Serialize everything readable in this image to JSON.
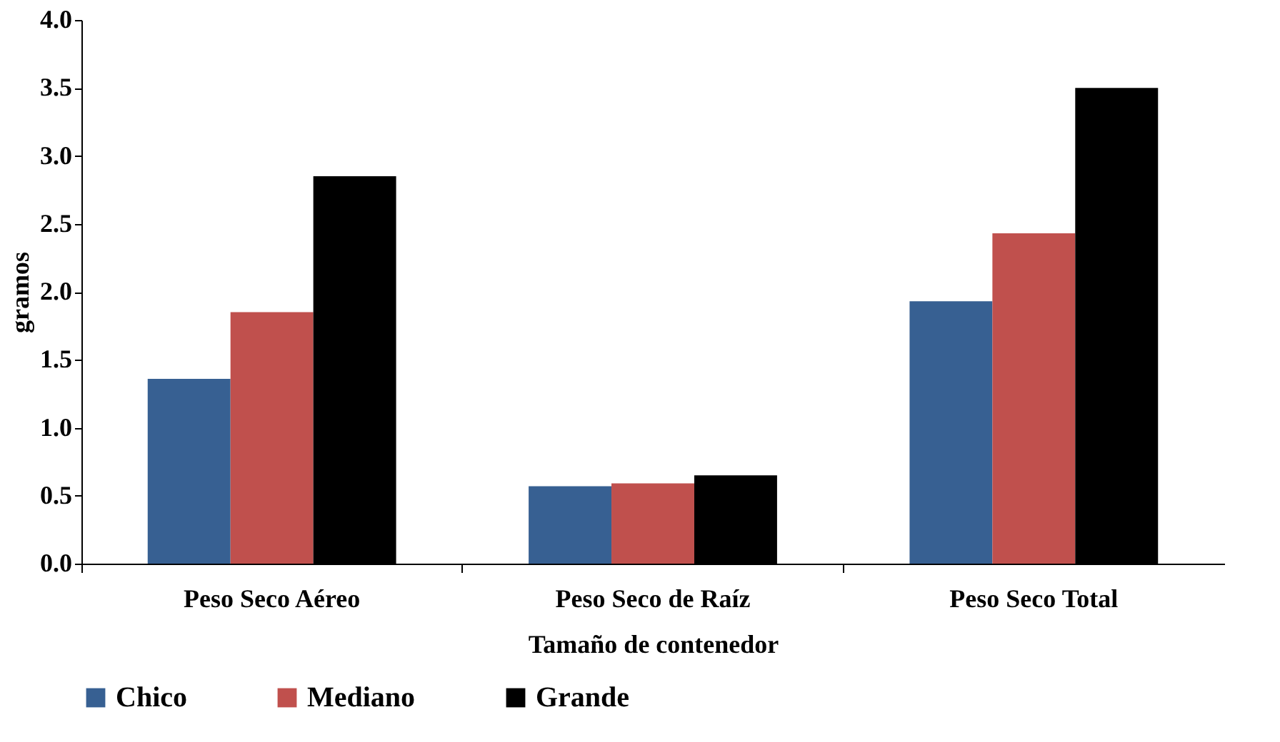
{
  "chart_data": {
    "type": "bar",
    "xlabel": "Tamaño de contenedor",
    "ylabel": "gramos",
    "categories": [
      "Peso Seco Aéreo",
      "Peso Seco de Raíz",
      "Peso Seco Total"
    ],
    "series": [
      {
        "name": "Chico",
        "color": "#376092",
        "values": [
          1.36,
          0.57,
          1.93
        ]
      },
      {
        "name": "Mediano",
        "color": "#c0504d",
        "values": [
          1.85,
          0.59,
          2.43
        ]
      },
      {
        "name": "Grande",
        "color": "#000000",
        "values": [
          2.85,
          0.65,
          3.5
        ]
      }
    ],
    "ylim": [
      0,
      4.0
    ],
    "yticks": [
      {
        "value": 0,
        "label": "0.0"
      },
      {
        "value": 0.5,
        "label": "0.5"
      },
      {
        "value": 1,
        "label": "1.0"
      },
      {
        "value": 1.5,
        "label": "1.5"
      },
      {
        "value": 2,
        "label": "2.0"
      },
      {
        "value": 2.5,
        "label": "2.5"
      },
      {
        "value": 3,
        "label": "3.0"
      },
      {
        "value": 3.5,
        "label": "3.5"
      },
      {
        "value": 4,
        "label": "4.0"
      }
    ],
    "grid": false,
    "legend": "bottom"
  }
}
